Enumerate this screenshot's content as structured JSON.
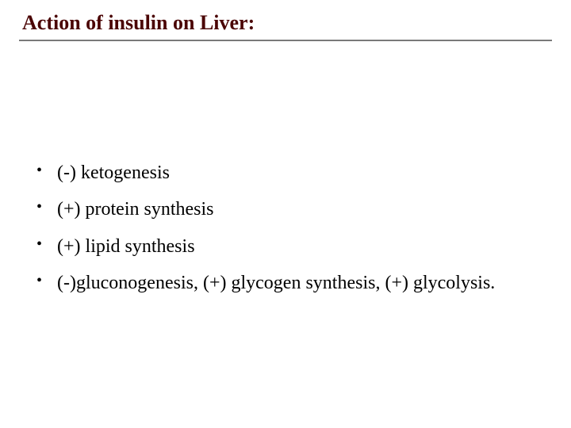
{
  "title_text": "Action of insulin on Liver:",
  "title_color": "#4a0404",
  "divider_color": "#7a7a7a",
  "background_color": "#ffffff",
  "text_color": "#000000",
  "title_fontsize": 26,
  "body_fontsize": 24,
  "bullets": {
    "b0": "(-) ketogenesis",
    "b1": "(+) protein synthesis",
    "b2": " (+) lipid synthesis",
    "b3": "(-)gluconogenesis, (+) glycogen synthesis, (+) glycolysis."
  }
}
